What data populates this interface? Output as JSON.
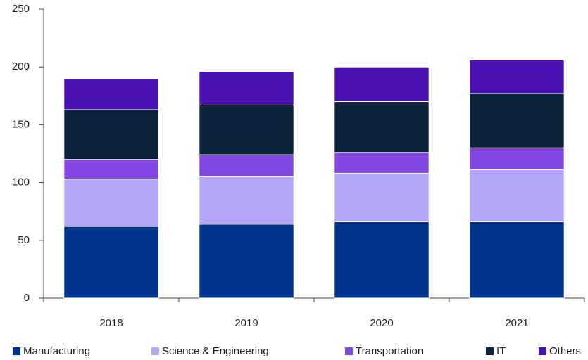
{
  "chart_data": {
    "type": "stacked_bar",
    "categories": [
      "2018",
      "2019",
      "2020",
      "2021"
    ],
    "series": [
      {
        "name": "Manufacturing",
        "color": "#00338d",
        "values": [
          62,
          64,
          66,
          66
        ]
      },
      {
        "name": "Science & Engineering",
        "color": "#b3a5f8",
        "values": [
          41,
          41,
          42,
          45
        ]
      },
      {
        "name": "Transportation",
        "color": "#8246e2",
        "values": [
          17,
          19,
          18,
          19
        ]
      },
      {
        "name": "IT",
        "color": "#0c233c",
        "values": [
          43,
          43,
          44,
          47
        ]
      },
      {
        "name": "Others",
        "color": "#4a12b2",
        "values": [
          27,
          29,
          30,
          29
        ]
      }
    ],
    "ylim": [
      0,
      250
    ],
    "yticks": [
      0,
      50,
      100,
      150,
      200,
      250
    ],
    "grid": false,
    "legend": "bottom"
  }
}
